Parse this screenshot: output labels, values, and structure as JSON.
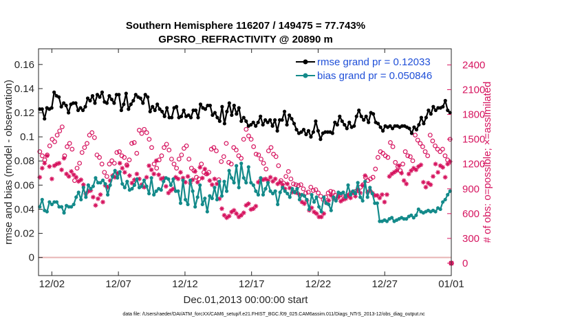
{
  "chart_data": {
    "type": "line",
    "title": "Southern Hemisphere 116207 / 149475 = 77.743%",
    "subtitle": "GPSRO_REFRACTIVITY @ 20890 m",
    "xlabel": "Dec.01,2013 00:00:00 start",
    "ylabel_left": "rmse and bias (model - observation)",
    "ylabel_right": "# of obs: o=possible; ×=assimilated",
    "footnote": "data file: /Users/raeder/DAI/ATM_forcXX/CAM6_setup/f.e21.FHIST_BGC.f09_025.CAM6assim.011/Diags_NTrS_2013-12/obs_diag_output.nc",
    "xlim": [
      0,
      31
    ],
    "ylim_left": [
      -0.015,
      0.173
    ],
    "ylim_right": [
      -150,
      2595
    ],
    "grid": false,
    "legend_position": "top-right",
    "colors": {
      "rmse": "#000000",
      "bias": "#138a8a",
      "counts": "#d6145f",
      "legend_text": "#1f4fd8",
      "zero_line": "#e8b4b4"
    },
    "x_ticks": [
      {
        "label": "12/02",
        "value": 1
      },
      {
        "label": "12/07",
        "value": 6
      },
      {
        "label": "12/12",
        "value": 11
      },
      {
        "label": "12/17",
        "value": 16
      },
      {
        "label": "12/22",
        "value": 21
      },
      {
        "label": "12/27",
        "value": 26
      },
      {
        "label": "01/01",
        "value": 31
      }
    ],
    "y_ticks_left": [
      {
        "label": "0",
        "value": 0
      },
      {
        "label": "0.02",
        "value": 0.02
      },
      {
        "label": "0.04",
        "value": 0.04
      },
      {
        "label": "0.06",
        "value": 0.06
      },
      {
        "label": "0.08",
        "value": 0.08
      },
      {
        "label": "0.1",
        "value": 0.1
      },
      {
        "label": "0.12",
        "value": 0.12
      },
      {
        "label": "0.14",
        "value": 0.14
      },
      {
        "label": "0.16",
        "value": 0.16
      }
    ],
    "y_ticks_right": [
      {
        "label": "0",
        "value": 0
      },
      {
        "label": "300",
        "value": 300
      },
      {
        "label": "600",
        "value": 600
      },
      {
        "label": "900",
        "value": 900
      },
      {
        "label": "1200",
        "value": 1200
      },
      {
        "label": "1500",
        "value": 1500
      },
      {
        "label": "1800",
        "value": 1800
      },
      {
        "label": "2100",
        "value": 2100
      },
      {
        "label": "2400",
        "value": 2400
      }
    ],
    "series": [
      {
        "name": "rmse grand pr = 0.12033",
        "axis": "left",
        "marker": "dot-line",
        "values": [
          0.123,
          0.123,
          0.115,
          0.124,
          0.123,
          0.124,
          0.137,
          0.134,
          0.133,
          0.125,
          0.128,
          0.126,
          0.12,
          0.127,
          0.128,
          0.128,
          0.122,
          0.124,
          0.122,
          0.125,
          0.132,
          0.13,
          0.134,
          0.128,
          0.135,
          0.133,
          0.137,
          0.129,
          0.128,
          0.134,
          0.131,
          0.128,
          0.135,
          0.135,
          0.122,
          0.127,
          0.136,
          0.123,
          0.127,
          0.13,
          0.135,
          0.133,
          0.132,
          0.128,
          0.135,
          0.133,
          0.121,
          0.125,
          0.122,
          0.127,
          0.123,
          0.121,
          0.117,
          0.124,
          0.116,
          0.116,
          0.124,
          0.125,
          0.116,
          0.117,
          0.122,
          0.117,
          0.118,
          0.116,
          0.122,
          0.122,
          0.116,
          0.127,
          0.124,
          0.123,
          0.126,
          0.126,
          0.118,
          0.12,
          0.116,
          0.113,
          0.125,
          0.111,
          0.121,
          0.128,
          0.118,
          0.126,
          0.119,
          0.124,
          0.113,
          0.116,
          0.113,
          0.109,
          0.11,
          0.112,
          0.109,
          0.112,
          0.117,
          0.11,
          0.114,
          0.112,
          0.114,
          0.109,
          0.114,
          0.105,
          0.114,
          0.114,
          0.121,
          0.11,
          0.118,
          0.115,
          0.111,
          0.106,
          0.103,
          0.104,
          0.106,
          0.102,
          0.105,
          0.1,
          0.104,
          0.113,
          0.105,
          0.098,
          0.103,
          0.104,
          0.104,
          0.104,
          0.103,
          0.112,
          0.11,
          0.117,
          0.113,
          0.11,
          0.107,
          0.112,
          0.108,
          0.109,
          0.117,
          0.122,
          0.117,
          0.114,
          0.117,
          0.112,
          0.12,
          0.119,
          0.112,
          0.111,
          0.108,
          0.105,
          0.109,
          0.108,
          0.109,
          0.107,
          0.109,
          0.109,
          0.108,
          0.109,
          0.109,
          0.108,
          0.107,
          0.103,
          0.108,
          0.106,
          0.11,
          0.116,
          0.111,
          0.116,
          0.122,
          0.119,
          0.125,
          0.122,
          0.124,
          0.124,
          0.125,
          0.13,
          0.122,
          0.12
        ]
      },
      {
        "name": "bias grand pr = 0.050846",
        "axis": "left",
        "marker": "dot-line",
        "values": [
          0.042,
          0.048,
          0.039,
          0.038,
          0.046,
          0.044,
          0.046,
          0.046,
          0.042,
          0.042,
          0.037,
          0.043,
          0.042,
          0.042,
          0.044,
          0.05,
          0.054,
          0.048,
          0.058,
          0.05,
          0.06,
          0.057,
          0.059,
          0.066,
          0.062,
          0.062,
          0.064,
          0.061,
          0.052,
          0.06,
          0.067,
          0.072,
          0.066,
          0.071,
          0.061,
          0.058,
          0.063,
          0.056,
          0.057,
          0.06,
          0.065,
          0.058,
          0.059,
          0.064,
          0.059,
          0.053,
          0.066,
          0.052,
          0.055,
          0.057,
          0.056,
          0.063,
          0.066,
          0.065,
          0.06,
          0.065,
          0.055,
          0.055,
          0.045,
          0.064,
          0.048,
          0.044,
          0.064,
          0.055,
          0.042,
          0.05,
          0.06,
          0.044,
          0.049,
          0.038,
          0.051,
          0.049,
          0.058,
          0.048,
          0.063,
          0.051,
          0.063,
          0.055,
          0.072,
          0.066,
          0.062,
          0.076,
          0.058,
          0.078,
          0.066,
          0.062,
          0.075,
          0.062,
          0.06,
          0.055,
          0.052,
          0.066,
          0.052,
          0.057,
          0.062,
          0.055,
          0.053,
          0.055,
          0.044,
          0.054,
          0.058,
          0.055,
          0.053,
          0.05,
          0.057,
          0.054,
          0.057,
          0.048,
          0.052,
          0.051,
          0.048,
          0.04,
          0.052,
          0.046,
          0.05,
          0.042,
          0.038,
          0.05,
          0.045,
          0.044,
          0.039,
          0.05,
          0.047,
          0.054,
          0.053,
          0.054,
          0.05,
          0.06,
          0.052,
          0.055,
          0.053,
          0.062,
          0.05,
          0.047,
          0.063,
          0.05,
          0.058,
          0.053,
          0.045,
          0.045,
          0.03,
          0.03,
          0.031,
          0.03,
          0.032,
          0.033,
          0.03,
          0.031,
          0.032,
          0.033,
          0.032,
          0.032,
          0.034,
          0.035,
          0.033,
          0.035,
          0.04,
          0.038,
          0.037,
          0.038,
          0.039,
          0.038,
          0.039,
          0.038,
          0.041,
          0.04,
          0.046,
          0.048,
          0.052,
          0.055
        ]
      },
      {
        "name": "possible",
        "axis": "right",
        "marker": "circle",
        "values": [
          1350,
          1300,
          1250,
          1310,
          1420,
          1500,
          1470,
          1550,
          1600,
          1650,
          1300,
          1410,
          1450,
          1380,
          1000,
          1150,
          1210,
          1340,
          1400,
          1450,
          1550,
          1580,
          1520,
          1310,
          1280,
          1200,
          1100,
          1050,
          1200,
          1240,
          1210,
          1340,
          1350,
          1300,
          1280,
          1190,
          1250,
          1450,
          1460,
          1330,
          1610,
          1570,
          1620,
          1580,
          1500,
          1400,
          1200,
          1150,
          1250,
          1300,
          1400,
          1440,
          1370,
          1260,
          1200,
          1150,
          1260,
          1310,
          1390,
          1420,
          1260,
          1150,
          1120,
          1040,
          1020,
          1200,
          1100,
          1080,
          1100,
          1380,
          1400,
          1360,
          1010,
          1230,
          1290,
          1450,
          1220,
          1200,
          1400,
          1370,
          1300,
          1270,
          1500,
          1620,
          1540,
          1500,
          1410,
          1320,
          1310,
          1260,
          1210,
          1140,
          1360,
          1400,
          1320,
          1290,
          1180,
          1000,
          970,
          1050,
          1110,
          1020,
          960,
          950,
          940,
          950,
          900,
          850,
          860,
          920,
          880,
          890,
          850,
          810,
          770,
          800,
          850,
          870,
          860,
          820,
          810,
          830,
          820,
          810,
          820,
          850,
          860,
          870,
          880,
          920,
          950,
          1040,
          1000,
          1020,
          1040,
          1140,
          1280,
          1350,
          1330,
          1300,
          1280,
          1460,
          1410,
          1220,
          1170,
          1120,
          1200,
          1350,
          1300,
          1290,
          1240,
          1550,
          1490,
          1450,
          1410,
          1350,
          1300,
          1550,
          1480,
          1420,
          1380,
          1350,
          1380,
          1300,
          1250,
          1500
        ]
      },
      {
        "name": "assimilated",
        "axis": "right",
        "marker": "asterisk",
        "values": [
          1040,
          1150,
          1210,
          1300,
          1170,
          1020,
          1180,
          1200,
          1210,
          1130,
          1270,
          1080,
          1050,
          1110,
          1070,
          1040,
          990,
          1010,
          950,
          840,
          870,
          880,
          800,
          700,
          780,
          830,
          740,
          940,
          920,
          1000,
          1060,
          1040,
          1090,
          1210,
          1150,
          1100,
          1180,
          1060,
          970,
          1010,
          1080,
          1020,
          950,
          920,
          1040,
          1180,
          1130,
          1080,
          1240,
          1070,
          1020,
          1030,
          930,
          850,
          880,
          900,
          1040,
          1020,
          1100,
          1030,
          980,
          1050,
          970,
          1010,
          1110,
          980,
          1160,
          1030,
          1140,
          1080,
          1000,
          950,
          1020,
          960,
          780,
          660,
          580,
          550,
          570,
          620,
          640,
          600,
          560,
          580,
          610,
          700,
          720,
          650,
          660,
          690,
          980,
          1010,
          1010,
          1020,
          1000,
          1040,
          990,
          1020,
          960,
          980,
          950,
          900,
          960,
          910,
          860,
          860,
          850,
          830,
          740,
          720,
          760,
          640,
          670,
          620,
          600,
          560,
          560,
          600,
          730,
          760,
          820,
          780,
          770,
          800,
          750,
          770,
          780,
          820,
          790,
          850,
          810,
          890,
          850,
          940,
          1060,
          860,
          880,
          850,
          820,
          820,
          790,
          830,
          740,
          830,
          1050,
          1080,
          1100,
          1120,
          1180,
          1090,
          1000,
          960,
          1080,
          1120,
          1150,
          1130,
          1170,
          1190,
          980,
          920,
          970,
          950,
          1050,
          1200,
          1100,
          1180,
          1160,
          1040,
          1200,
          1230
        ]
      }
    ]
  }
}
